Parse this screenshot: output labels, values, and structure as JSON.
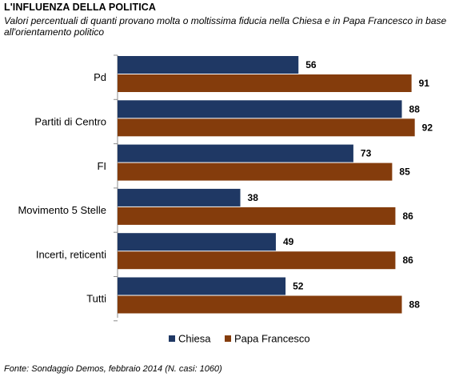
{
  "header": {
    "title": "L'INFLUENZA DELLA POLITICA",
    "subtitle": "Valori percentuali di quanti provano molta o moltissima fiducia nella Chiesa e in Papa Francesco in base all'orientamento politico"
  },
  "footer": {
    "source": "Fonte: Sondaggio Demos, febbraio 2014 (N. casi: 1060)"
  },
  "chart_data": {
    "type": "bar",
    "orientation": "horizontal",
    "categories": [
      "Pd",
      "Partiti di Centro",
      "FI",
      "Movimento 5 Stelle",
      "Incerti, reticenti",
      "Tutti"
    ],
    "series": [
      {
        "name": "Chiesa",
        "color": "#1f3864",
        "values": [
          56,
          88,
          73,
          38,
          49,
          52
        ]
      },
      {
        "name": "Papa Francesco",
        "color": "#843c0c",
        "values": [
          91,
          92,
          85,
          86,
          86,
          88
        ]
      }
    ],
    "xlim": [
      0,
      100
    ],
    "grid": false,
    "legend_position": "bottom"
  }
}
